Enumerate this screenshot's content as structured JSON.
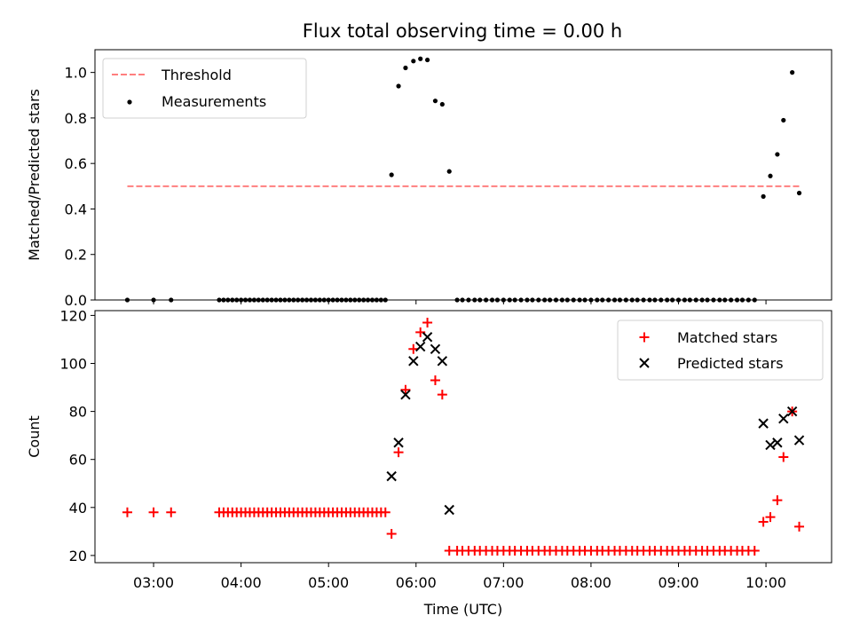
{
  "chart_data": [
    {
      "type": "scatter",
      "title": "Flux total observing time = 0.00 h",
      "ylabel": "Matched/Predicted stars",
      "xlabel": "",
      "xlim": [
        2.33,
        10.75
      ],
      "ylim": [
        0,
        1.1
      ],
      "yticks": [
        0.0,
        0.2,
        0.4,
        0.6,
        0.8,
        1.0
      ],
      "ytick_labels": [
        "0.0",
        "0.2",
        "0.4",
        "0.6",
        "0.8",
        "1.0"
      ],
      "xticks": [
        3,
        4,
        5,
        6,
        7,
        8,
        9,
        10
      ],
      "legend_position": "top-left",
      "threshold": {
        "name": "Threshold",
        "value": 0.5,
        "x_range": [
          2.7,
          10.38
        ],
        "color": "#ff7f7f"
      },
      "series": [
        {
          "name": "Measurements",
          "color": "#000000",
          "x": [
            2.7,
            3.0,
            3.2,
            3.75,
            3.8,
            3.85,
            3.9,
            3.95,
            4.0,
            4.05,
            4.1,
            4.15,
            4.2,
            4.25,
            4.3,
            4.35,
            4.4,
            4.45,
            4.5,
            4.55,
            4.6,
            4.65,
            4.7,
            4.75,
            4.8,
            4.85,
            4.9,
            4.95,
            5.0,
            5.05,
            5.1,
            5.15,
            5.2,
            5.25,
            5.3,
            5.35,
            5.4,
            5.45,
            5.5,
            5.55,
            5.6,
            5.65,
            5.72,
            5.8,
            5.88,
            5.97,
            6.05,
            6.13,
            6.22,
            6.3,
            6.38,
            6.47,
            6.53,
            6.6,
            6.67,
            6.73,
            6.8,
            6.87,
            6.93,
            7.0,
            7.07,
            7.13,
            7.2,
            7.27,
            7.33,
            7.4,
            7.47,
            7.53,
            7.6,
            7.67,
            7.73,
            7.8,
            7.87,
            7.93,
            8.0,
            8.07,
            8.13,
            8.2,
            8.27,
            8.33,
            8.4,
            8.47,
            8.53,
            8.6,
            8.67,
            8.73,
            8.8,
            8.87,
            8.93,
            9.0,
            9.07,
            9.13,
            9.2,
            9.27,
            9.33,
            9.4,
            9.47,
            9.53,
            9.6,
            9.67,
            9.73,
            9.8,
            9.87,
            9.97,
            10.05,
            10.13,
            10.2,
            10.3,
            10.38
          ],
          "y": [
            0,
            0,
            0,
            0,
            0,
            0,
            0,
            0,
            0,
            0,
            0,
            0,
            0,
            0,
            0,
            0,
            0,
            0,
            0,
            0,
            0,
            0,
            0,
            0,
            0,
            0,
            0,
            0,
            0,
            0,
            0,
            0,
            0,
            0,
            0,
            0,
            0,
            0,
            0,
            0,
            0,
            0,
            0.55,
            0.94,
            1.02,
            1.05,
            1.06,
            1.055,
            0.875,
            0.86,
            0.565,
            0,
            0,
            0,
            0,
            0,
            0,
            0,
            0,
            0,
            0,
            0,
            0,
            0,
            0,
            0,
            0,
            0,
            0,
            0,
            0,
            0,
            0,
            0,
            0,
            0,
            0,
            0,
            0,
            0,
            0,
            0,
            0,
            0,
            0,
            0,
            0,
            0,
            0,
            0,
            0,
            0,
            0,
            0,
            0,
            0,
            0,
            0,
            0,
            0,
            0,
            0,
            0,
            0.455,
            0.545,
            0.64,
            0.79,
            1.0,
            0.47
          ]
        }
      ]
    },
    {
      "type": "scatter",
      "title": "",
      "xlabel": "Time (UTC)",
      "ylabel": "Count",
      "xlim": [
        2.33,
        10.75
      ],
      "ylim": [
        17,
        122
      ],
      "yticks": [
        20,
        40,
        60,
        80,
        100,
        120
      ],
      "ytick_labels": [
        "20",
        "40",
        "60",
        "80",
        "100",
        "120"
      ],
      "xticks": [
        3,
        4,
        5,
        6,
        7,
        8,
        9,
        10
      ],
      "xtick_labels": [
        "03:00",
        "04:00",
        "05:00",
        "06:00",
        "07:00",
        "08:00",
        "09:00",
        "10:00"
      ],
      "legend_position": "top-right",
      "series": [
        {
          "name": "Matched stars",
          "marker": "plus",
          "color": "#ff0000",
          "x": [
            2.7,
            3.0,
            3.2,
            3.75,
            3.8,
            3.85,
            3.9,
            3.95,
            4.0,
            4.05,
            4.1,
            4.15,
            4.2,
            4.25,
            4.3,
            4.35,
            4.4,
            4.45,
            4.5,
            4.55,
            4.6,
            4.65,
            4.7,
            4.75,
            4.8,
            4.85,
            4.9,
            4.95,
            5.0,
            5.05,
            5.1,
            5.15,
            5.2,
            5.25,
            5.3,
            5.35,
            5.4,
            5.45,
            5.5,
            5.55,
            5.6,
            5.65,
            5.72,
            5.8,
            5.88,
            5.97,
            6.05,
            6.13,
            6.22,
            6.3,
            6.38,
            6.47,
            6.53,
            6.6,
            6.67,
            6.73,
            6.8,
            6.87,
            6.93,
            7.0,
            7.07,
            7.13,
            7.2,
            7.27,
            7.33,
            7.4,
            7.47,
            7.53,
            7.6,
            7.67,
            7.73,
            7.8,
            7.87,
            7.93,
            8.0,
            8.07,
            8.13,
            8.2,
            8.27,
            8.33,
            8.4,
            8.47,
            8.53,
            8.6,
            8.67,
            8.73,
            8.8,
            8.87,
            8.93,
            9.0,
            9.07,
            9.13,
            9.2,
            9.27,
            9.33,
            9.4,
            9.47,
            9.53,
            9.6,
            9.67,
            9.73,
            9.8,
            9.87,
            9.97,
            10.05,
            10.13,
            10.2,
            10.3,
            10.38
          ],
          "y": [
            38,
            38,
            38,
            38,
            38,
            38,
            38,
            38,
            38,
            38,
            38,
            38,
            38,
            38,
            38,
            38,
            38,
            38,
            38,
            38,
            38,
            38,
            38,
            38,
            38,
            38,
            38,
            38,
            38,
            38,
            38,
            38,
            38,
            38,
            38,
            38,
            38,
            38,
            38,
            38,
            38,
            38,
            29,
            63,
            89,
            106,
            113,
            117,
            93,
            87,
            22,
            22,
            22,
            22,
            22,
            22,
            22,
            22,
            22,
            22,
            22,
            22,
            22,
            22,
            22,
            22,
            22,
            22,
            22,
            22,
            22,
            22,
            22,
            22,
            22,
            22,
            22,
            22,
            22,
            22,
            22,
            22,
            22,
            22,
            22,
            22,
            22,
            22,
            22,
            22,
            22,
            22,
            22,
            22,
            22,
            22,
            22,
            22,
            22,
            22,
            22,
            22,
            22,
            34,
            36,
            43,
            61,
            80,
            32
          ]
        },
        {
          "name": "Predicted stars",
          "marker": "x",
          "color": "#000000",
          "x": [
            5.72,
            5.8,
            5.88,
            5.97,
            6.05,
            6.13,
            6.22,
            6.3,
            6.38,
            9.97,
            10.05,
            10.13,
            10.2,
            10.3,
            10.38
          ],
          "y": [
            53,
            67,
            87,
            101,
            107,
            111,
            106,
            101,
            39,
            75,
            66,
            67,
            77,
            80,
            68
          ]
        }
      ]
    }
  ]
}
